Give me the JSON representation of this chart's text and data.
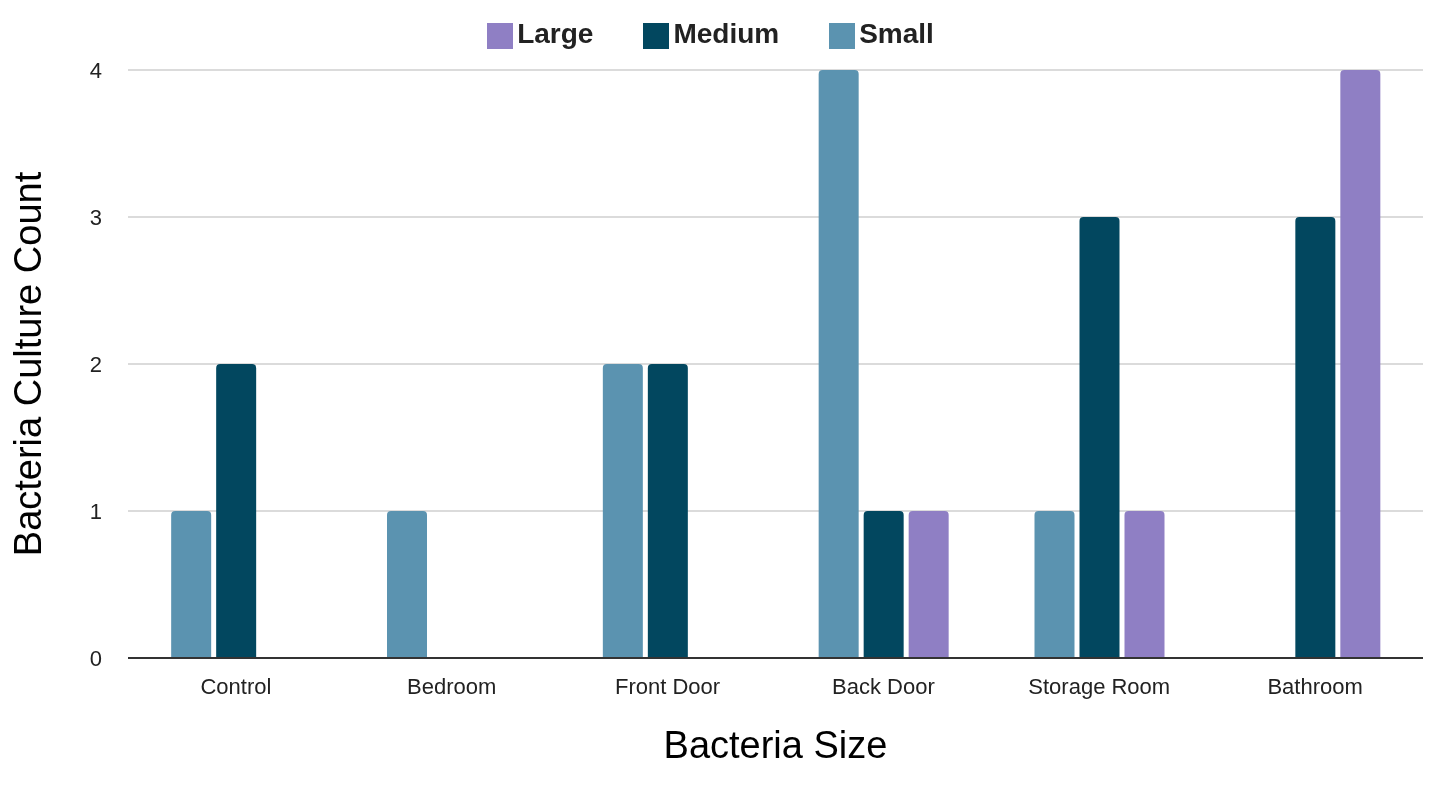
{
  "chart_data": {
    "type": "bar",
    "xlabel": "Bacteria Size",
    "ylabel": "Bacteria Culture Count",
    "categories": [
      "Control",
      "Bedroom",
      "Front Door",
      "Back Door",
      "Storage Room",
      "Bathroom"
    ],
    "series": [
      {
        "name": "Small",
        "color": "#5b93b0",
        "values": [
          1,
          1,
          2,
          4,
          1,
          0
        ]
      },
      {
        "name": "Medium",
        "color": "#02475f",
        "values": [
          2,
          0,
          2,
          1,
          3,
          3
        ]
      },
      {
        "name": "Large",
        "color": "#8f7fc4",
        "values": [
          0,
          0,
          0,
          1,
          1,
          4
        ]
      }
    ],
    "ylim": [
      0,
      4
    ],
    "yticks": [
      0,
      1,
      2,
      3,
      4
    ],
    "grid": "y",
    "legend": "top"
  }
}
